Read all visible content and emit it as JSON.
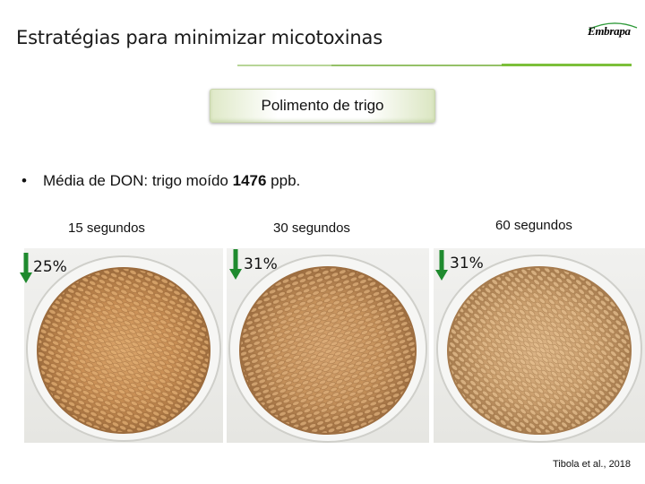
{
  "header": {
    "title": "Estratégias para minimizar micotoxinas",
    "logo_text": "Embrapa",
    "accent_color": "#7cbf3a"
  },
  "section_button": {
    "label": "Polimento de trigo"
  },
  "bullet": {
    "marker": "•",
    "text_before": "Média de DON: trigo moído ",
    "value": "1476",
    "text_after": " ppb."
  },
  "samples": [
    {
      "time_label": "15 segundos",
      "reduction": "25%",
      "icon": "arrow-down-icon"
    },
    {
      "time_label": "30 segundos",
      "reduction": "31%",
      "icon": "arrow-down-icon"
    },
    {
      "time_label": "60 segundos",
      "reduction": "31%",
      "icon": "arrow-down-icon"
    }
  ],
  "arrow_color": "#1f8a2e",
  "citation": "Tibola et al., 2018"
}
